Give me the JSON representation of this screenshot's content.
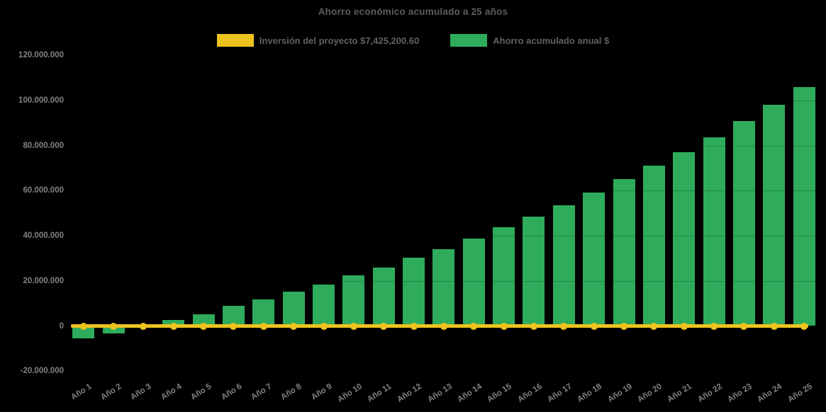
{
  "colors": {
    "background": "#000000",
    "bar_green": "#2eac5b",
    "line_yellow": "#edc31e",
    "title_text": "#5c5c5c",
    "legend_text": "#616161",
    "tick_text": "#828282"
  },
  "chart_data": {
    "type": "bar",
    "title": "Ahorro económico acumulado a 25 años",
    "legend_position": "top",
    "grid": "faint overlay",
    "categories": [
      "Año 1",
      "Año 2",
      "Año 3",
      "Año 4",
      "Año 5",
      "Año 6",
      "Año 7",
      "Año 8",
      "Año 9",
      "Año 10",
      "Año 11",
      "Año 12",
      "Año 13",
      "Año 14",
      "Año 15",
      "Año 16",
      "Año 17",
      "Año 18",
      "Año 19",
      "Año 20",
      "Año 21",
      "Año 22",
      "Año 23",
      "Año 24",
      "Año 25"
    ],
    "series": [
      {
        "name": "Inversión del proyecto $7,425,200.60",
        "type": "line",
        "color": "#edc31e",
        "values": [
          0,
          0,
          0,
          0,
          0,
          0,
          0,
          0,
          0,
          0,
          0,
          0,
          0,
          0,
          0,
          0,
          0,
          0,
          0,
          0,
          0,
          0,
          0,
          0,
          0
        ]
      },
      {
        "name": "Ahorro acumulado anual $",
        "type": "bar",
        "color": "#2eac5b",
        "values": [
          -5400000,
          -3200000,
          300000,
          2700000,
          5300000,
          8900000,
          11900000,
          15100000,
          18300000,
          22400000,
          26000000,
          30200000,
          34200000,
          38900000,
          43800000,
          48600000,
          53400000,
          59100000,
          65100000,
          71000000,
          77200000,
          83600000,
          90900000,
          98200000,
          105900000
        ]
      }
    ],
    "ylim": [
      -20000000,
      120000000
    ],
    "ytick_step": 20000000,
    "yticks": [
      {
        "value": -20000000,
        "label": "-20.000.000"
      },
      {
        "value": 0,
        "label": "0"
      },
      {
        "value": 20000000,
        "label": "20.000.000"
      },
      {
        "value": 40000000,
        "label": "40.000.000"
      },
      {
        "value": 60000000,
        "label": "60.000.000"
      },
      {
        "value": 80000000,
        "label": "80.000.000"
      },
      {
        "value": 100000000,
        "label": "100.000.000"
      },
      {
        "value": 120000000,
        "label": "120.000.000"
      }
    ],
    "xlabel": "",
    "ylabel": ""
  }
}
